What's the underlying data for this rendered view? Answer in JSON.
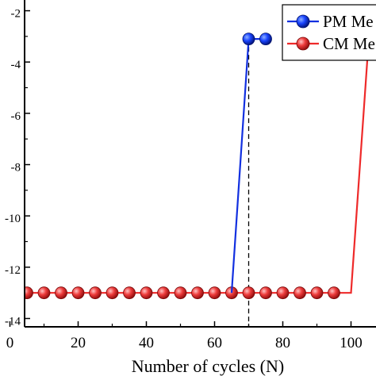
{
  "chart_data": {
    "type": "line",
    "xlabel": "Number of cycles (N)",
    "ylabel": "",
    "xlim": [
      0,
      105
    ],
    "ylim": [
      -14,
      -2
    ],
    "x_ticks": [
      0,
      20,
      40,
      60,
      80,
      100
    ],
    "x_tick_labels": [
      "0",
      "20",
      "40",
      "60",
      "80",
      "100"
    ],
    "y_ticks": [
      -14,
      -12,
      -10,
      -8,
      -6,
      -4,
      -2
    ],
    "y_tick_labels": [
      "-14",
      "-12",
      "-10",
      "-8",
      "-6",
      "-4",
      "-2"
    ],
    "y_scale": "log (exponent shown)",
    "grid": false,
    "legend_position": "top-right",
    "reference_line": {
      "x": 70,
      "style": "dashed"
    },
    "series": [
      {
        "name": "PM Me",
        "color": "#1230e0",
        "marker_color": "#0a2cff",
        "x": [
          65,
          70,
          75
        ],
        "y": [
          -13,
          -3.1,
          -3.1
        ],
        "markers_x": [
          70,
          75
        ],
        "markers_y": [
          -3.1,
          -3.1
        ]
      },
      {
        "name": "CM Me",
        "color": "#ee2a2a",
        "marker_color": "#e83a3a",
        "x": [
          5,
          10,
          15,
          20,
          25,
          30,
          35,
          40,
          45,
          50,
          55,
          60,
          65,
          70,
          75,
          80,
          85,
          90,
          95,
          100,
          105
        ],
        "y": [
          -13,
          -13,
          -13,
          -13,
          -13,
          -13,
          -13,
          -13,
          -13,
          -13,
          -13,
          -13,
          -13,
          -13,
          -13,
          -13,
          -13,
          -13,
          -13,
          -13,
          -3.5
        ],
        "markers_x": [
          5,
          10,
          15,
          20,
          25,
          30,
          35,
          40,
          45,
          50,
          55,
          60,
          65,
          70,
          75,
          80,
          85,
          90,
          95
        ],
        "markers_y": [
          -13,
          -13,
          -13,
          -13,
          -13,
          -13,
          -13,
          -13,
          -13,
          -13,
          -13,
          -13,
          -13,
          -13,
          -13,
          -13,
          -13,
          -13,
          -13
        ]
      }
    ]
  }
}
